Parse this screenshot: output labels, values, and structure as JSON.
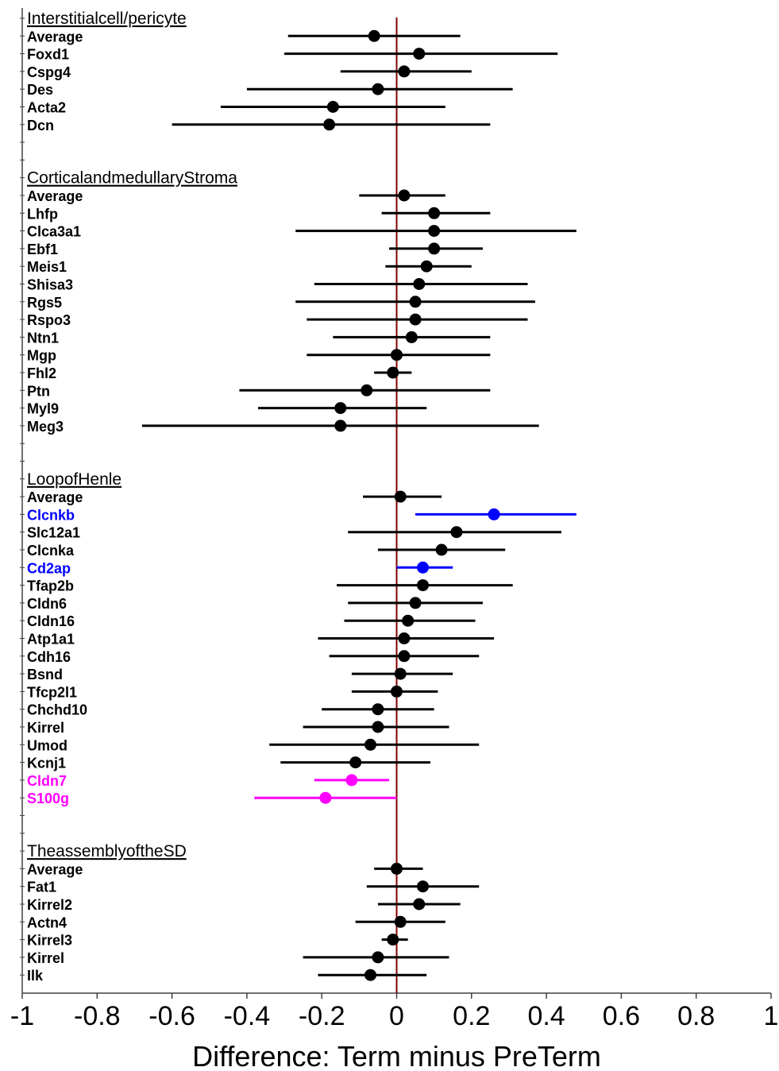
{
  "chart_data": {
    "type": "forest",
    "xlabel": "Difference: Term minus PreTerm",
    "xlim": [
      -1,
      1
    ],
    "x_ticks": [
      -1,
      -0.8,
      -0.6,
      -0.4,
      -0.2,
      0,
      0.2,
      0.4,
      0.6,
      0.8,
      1
    ],
    "x_tick_labels": [
      "-1",
      "-0.8",
      "-0.6",
      "-0.4",
      "-0.2",
      "0",
      "0.2",
      "0.4",
      "0.6",
      "0.8",
      "1"
    ],
    "reference_line": 0,
    "colors": {
      "default": "#000000",
      "up": "#0000ff",
      "down": "#ff00ff",
      "reference_line": "#800000",
      "axis": "#404040"
    },
    "groups": [
      {
        "name": "Interstitialcell/pericyte",
        "rows": [
          {
            "label": "Average",
            "estimate": -0.06,
            "lower": -0.29,
            "upper": 0.17,
            "color": "default"
          },
          {
            "label": "Foxd1",
            "estimate": 0.06,
            "lower": -0.3,
            "upper": 0.43,
            "color": "default"
          },
          {
            "label": "Cspg4",
            "estimate": 0.02,
            "lower": -0.15,
            "upper": 0.2,
            "color": "default"
          },
          {
            "label": "Des",
            "estimate": -0.05,
            "lower": -0.4,
            "upper": 0.31,
            "color": "default"
          },
          {
            "label": "Acta2",
            "estimate": -0.17,
            "lower": -0.47,
            "upper": 0.13,
            "color": "default"
          },
          {
            "label": "Dcn",
            "estimate": -0.18,
            "lower": -0.6,
            "upper": 0.25,
            "color": "default"
          }
        ]
      },
      {
        "name": "CorticalandmedullaryStroma",
        "rows": [
          {
            "label": "Average",
            "estimate": 0.02,
            "lower": -0.1,
            "upper": 0.13,
            "color": "default"
          },
          {
            "label": "Lhfp",
            "estimate": 0.1,
            "lower": -0.04,
            "upper": 0.25,
            "color": "default"
          },
          {
            "label": "Clca3a1",
            "estimate": 0.1,
            "lower": -0.27,
            "upper": 0.48,
            "color": "default"
          },
          {
            "label": "Ebf1",
            "estimate": 0.1,
            "lower": -0.02,
            "upper": 0.23,
            "color": "default"
          },
          {
            "label": "Meis1",
            "estimate": 0.08,
            "lower": -0.03,
            "upper": 0.2,
            "color": "default"
          },
          {
            "label": "Shisa3",
            "estimate": 0.06,
            "lower": -0.22,
            "upper": 0.35,
            "color": "default"
          },
          {
            "label": "Rgs5",
            "estimate": 0.05,
            "lower": -0.27,
            "upper": 0.37,
            "color": "default"
          },
          {
            "label": "Rspo3",
            "estimate": 0.05,
            "lower": -0.24,
            "upper": 0.35,
            "color": "default"
          },
          {
            "label": "Ntn1",
            "estimate": 0.04,
            "lower": -0.17,
            "upper": 0.25,
            "color": "default"
          },
          {
            "label": "Mgp",
            "estimate": 0.0,
            "lower": -0.24,
            "upper": 0.25,
            "color": "default"
          },
          {
            "label": "Fhl2",
            "estimate": -0.01,
            "lower": -0.06,
            "upper": 0.04,
            "color": "default"
          },
          {
            "label": "Ptn",
            "estimate": -0.08,
            "lower": -0.42,
            "upper": 0.25,
            "color": "default"
          },
          {
            "label": "Myl9",
            "estimate": -0.15,
            "lower": -0.37,
            "upper": 0.08,
            "color": "default"
          },
          {
            "label": "Meg3",
            "estimate": -0.15,
            "lower": -0.68,
            "upper": 0.38,
            "color": "default"
          }
        ]
      },
      {
        "name": "LoopofHenle",
        "rows": [
          {
            "label": "Average",
            "estimate": 0.01,
            "lower": -0.09,
            "upper": 0.12,
            "color": "default"
          },
          {
            "label": "Clcnkb",
            "estimate": 0.26,
            "lower": 0.05,
            "upper": 0.48,
            "color": "up"
          },
          {
            "label": "Slc12a1",
            "estimate": 0.16,
            "lower": -0.13,
            "upper": 0.44,
            "color": "default"
          },
          {
            "label": "Clcnka",
            "estimate": 0.12,
            "lower": -0.05,
            "upper": 0.29,
            "color": "default"
          },
          {
            "label": "Cd2ap",
            "estimate": 0.07,
            "lower": 0.0,
            "upper": 0.15,
            "color": "up"
          },
          {
            "label": "Tfap2b",
            "estimate": 0.07,
            "lower": -0.16,
            "upper": 0.31,
            "color": "default"
          },
          {
            "label": "Cldn6",
            "estimate": 0.05,
            "lower": -0.13,
            "upper": 0.23,
            "color": "default"
          },
          {
            "label": "Cldn16",
            "estimate": 0.03,
            "lower": -0.14,
            "upper": 0.21,
            "color": "default"
          },
          {
            "label": "Atp1a1",
            "estimate": 0.02,
            "lower": -0.21,
            "upper": 0.26,
            "color": "default"
          },
          {
            "label": "Cdh16",
            "estimate": 0.02,
            "lower": -0.18,
            "upper": 0.22,
            "color": "default"
          },
          {
            "label": "Bsnd",
            "estimate": 0.01,
            "lower": -0.12,
            "upper": 0.15,
            "color": "default"
          },
          {
            "label": "Tfcp2l1",
            "estimate": 0.0,
            "lower": -0.12,
            "upper": 0.11,
            "color": "default"
          },
          {
            "label": "Chchd10",
            "estimate": -0.05,
            "lower": -0.2,
            "upper": 0.1,
            "color": "default"
          },
          {
            "label": "Kirrel",
            "estimate": -0.05,
            "lower": -0.25,
            "upper": 0.14,
            "color": "default"
          },
          {
            "label": "Umod",
            "estimate": -0.07,
            "lower": -0.34,
            "upper": 0.22,
            "color": "default"
          },
          {
            "label": "Kcnj1",
            "estimate": -0.11,
            "lower": -0.31,
            "upper": 0.09,
            "color": "default"
          },
          {
            "label": "Cldn7",
            "estimate": -0.12,
            "lower": -0.22,
            "upper": -0.02,
            "color": "down"
          },
          {
            "label": "S100g",
            "estimate": -0.19,
            "lower": -0.38,
            "upper": 0.0,
            "color": "down"
          }
        ]
      },
      {
        "name": "TheassemblyoftheSD",
        "rows": [
          {
            "label": "Average",
            "estimate": 0.0,
            "lower": -0.06,
            "upper": 0.07,
            "color": "default"
          },
          {
            "label": "Fat1",
            "estimate": 0.07,
            "lower": -0.08,
            "upper": 0.22,
            "color": "default"
          },
          {
            "label": "Kirrel2",
            "estimate": 0.06,
            "lower": -0.05,
            "upper": 0.17,
            "color": "default"
          },
          {
            "label": "Actn4",
            "estimate": 0.01,
            "lower": -0.11,
            "upper": 0.13,
            "color": "default"
          },
          {
            "label": "Kirrel3",
            "estimate": -0.01,
            "lower": -0.04,
            "upper": 0.03,
            "color": "default"
          },
          {
            "label": "Kirrel",
            "estimate": -0.05,
            "lower": -0.25,
            "upper": 0.14,
            "color": "default"
          },
          {
            "label": "Ilk",
            "estimate": -0.07,
            "lower": -0.21,
            "upper": 0.08,
            "color": "default"
          }
        ]
      }
    ]
  }
}
